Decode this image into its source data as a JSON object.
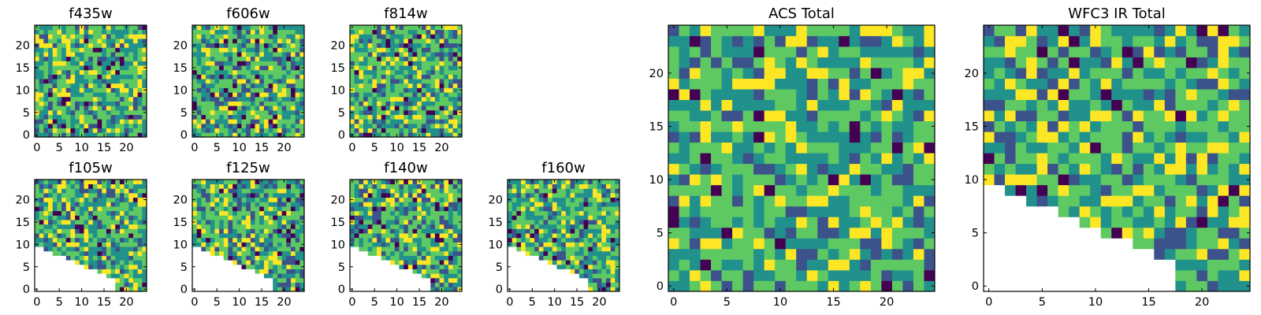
{
  "colormap": [
    "#440154",
    "#3b528b",
    "#21918c",
    "#5ec962",
    "#fde725"
  ],
  "chart_data": [
    {
      "type": "heatmap",
      "title": "f435w",
      "grid_size": 25,
      "xticks": [
        0,
        5,
        10,
        15,
        20
      ],
      "yticks": [
        0,
        5,
        10,
        15,
        20
      ],
      "masked_lower_left": false,
      "seed": 11
    },
    {
      "type": "heatmap",
      "title": "f606w",
      "grid_size": 25,
      "xticks": [
        0,
        5,
        10,
        15,
        20
      ],
      "yticks": [
        0,
        5,
        10,
        15,
        20
      ],
      "masked_lower_left": false,
      "seed": 23
    },
    {
      "type": "heatmap",
      "title": "f814w",
      "grid_size": 25,
      "xticks": [
        0,
        5,
        10,
        15,
        20
      ],
      "yticks": [
        0,
        5,
        10,
        15,
        20
      ],
      "masked_lower_left": false,
      "seed": 37
    },
    {
      "type": "heatmap",
      "title": "f105w",
      "grid_size": 25,
      "xticks": [
        0,
        5,
        10,
        15,
        20
      ],
      "yticks": [
        0,
        5,
        10,
        15,
        20
      ],
      "masked_lower_left": true,
      "seed": 41
    },
    {
      "type": "heatmap",
      "title": "f125w",
      "grid_size": 25,
      "xticks": [
        0,
        5,
        10,
        15,
        20
      ],
      "yticks": [
        0,
        5,
        10,
        15,
        20
      ],
      "masked_lower_left": true,
      "seed": 53
    },
    {
      "type": "heatmap",
      "title": "f140w",
      "grid_size": 25,
      "xticks": [
        0,
        5,
        10,
        15,
        20
      ],
      "yticks": [
        0,
        5,
        10,
        15,
        20
      ],
      "masked_lower_left": true,
      "seed": 67
    },
    {
      "type": "heatmap",
      "title": "f160w",
      "grid_size": 25,
      "xticks": [
        0,
        5,
        10,
        15,
        20
      ],
      "yticks": [
        0,
        5,
        10,
        15,
        20
      ],
      "masked_lower_left": true,
      "seed": 79
    },
    {
      "type": "heatmap",
      "title": "ACS Total",
      "grid_size": 25,
      "xticks": [
        0,
        5,
        10,
        15,
        20
      ],
      "yticks": [
        0,
        5,
        10,
        15,
        20
      ],
      "masked_lower_left": false,
      "seed": 89
    },
    {
      "type": "heatmap",
      "title": "WFC3 IR Total",
      "grid_size": 25,
      "xticks": [
        0,
        5,
        10,
        15,
        20
      ],
      "yticks": [
        0,
        5,
        10,
        15,
        20
      ],
      "masked_lower_left": true,
      "seed": 97
    }
  ]
}
